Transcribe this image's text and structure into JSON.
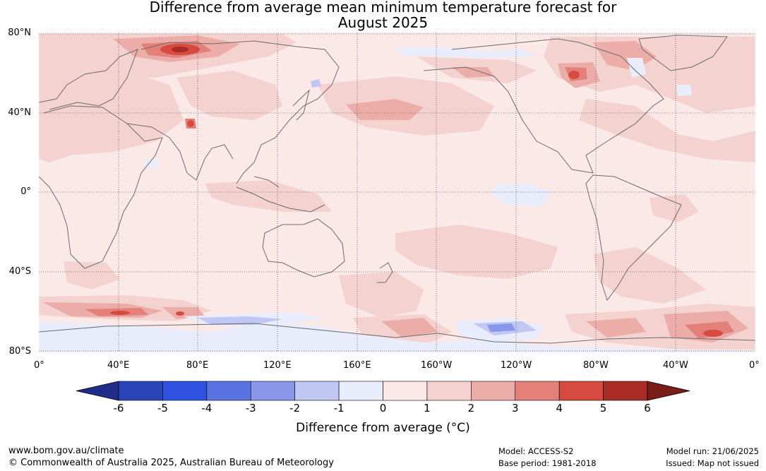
{
  "title_line1": "Difference from average mean minimum temperature forecast for",
  "title_line2": "August 2025",
  "lat_labels": [
    "80°N",
    "40°N",
    "0°",
    "40°S",
    "80°S"
  ],
  "lon_labels": [
    "0°",
    "40°E",
    "80°E",
    "120°E",
    "160°E",
    "160°W",
    "120°W",
    "80°W",
    "40°W",
    "0°"
  ],
  "colorbar": {
    "ticks": [
      "-6",
      "-5",
      "-4",
      "-3",
      "-2",
      "-1",
      "0",
      "1",
      "2",
      "3",
      "4",
      "5",
      "6"
    ],
    "colors": [
      "#1f2c8a",
      "#2a45b8",
      "#3052e0",
      "#5b72e3",
      "#8897ea",
      "#bfc7f2",
      "#e9ecfa",
      "#fbe9e7",
      "#f4d2d0",
      "#ecada9",
      "#e4807a",
      "#d64a3f",
      "#a82b25",
      "#7a1d17"
    ],
    "title": "Difference from average (°C)"
  },
  "footer": {
    "site": "www.bom.gov.au/climate",
    "copyright": "© Commonwealth of Australia 2025, Australian Bureau of Meteorology",
    "model": "Model: ACCESS-S2",
    "base_period": "Base period: 1981-2018",
    "model_run": "Model run: 21/06/2025",
    "issued": "Issued: Map not issued"
  }
}
